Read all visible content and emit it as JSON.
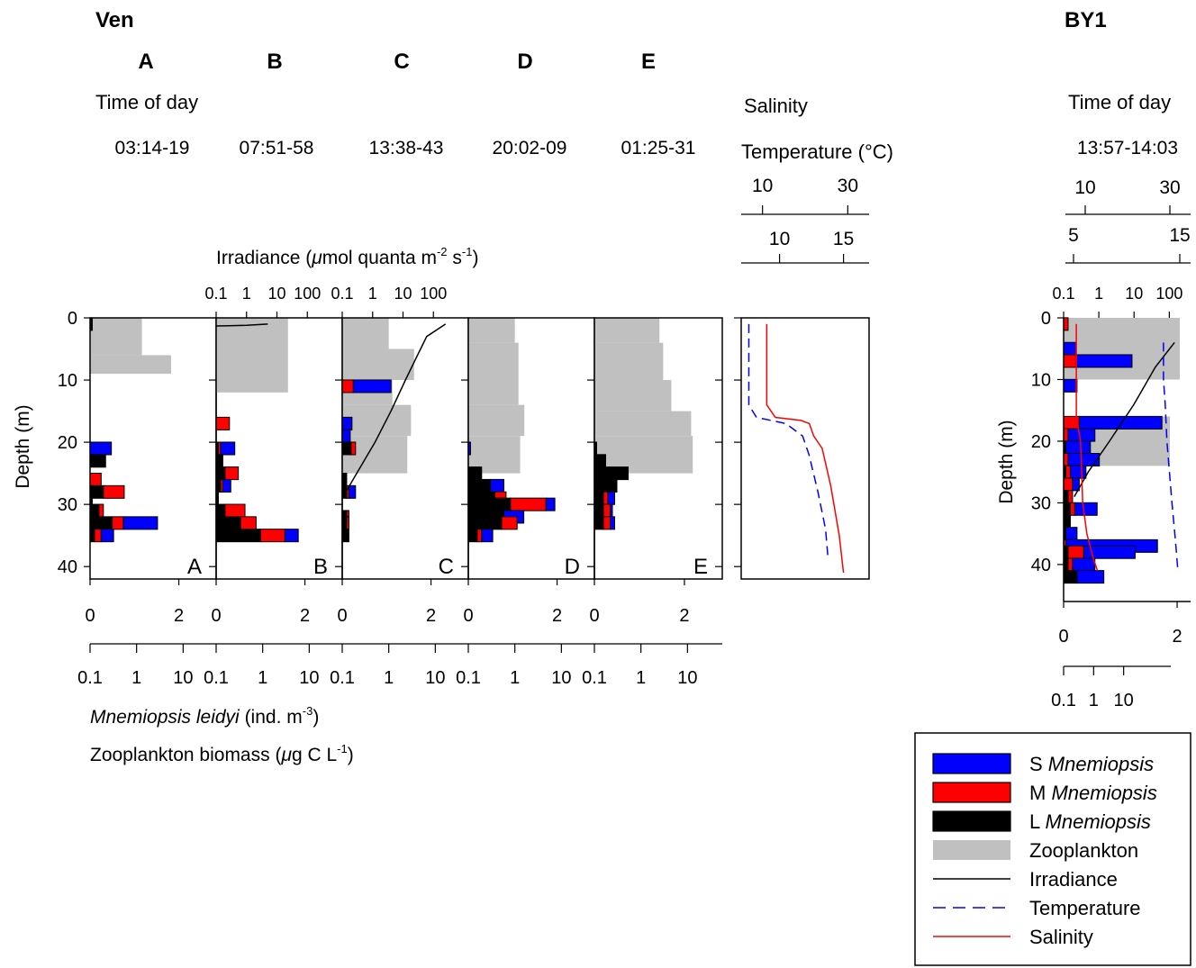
{
  "site_left": "Ven",
  "site_right": "BY1",
  "time_of_day_label": "Time of day",
  "salinity_label": "Salinity",
  "temperature_label": "Temperature (°C)",
  "irradiance_axis_label": {
    "pre": "Irradiance (",
    "mu": "μ",
    "mid": "mol quanta m",
    "sup1": "-2",
    "mid2": " s",
    "sup2": "-1",
    "post": ")"
  },
  "mnemiopsis_label": {
    "italic": "Mnemiopsis leidyi",
    "pre": " (ind. m",
    "sup": "-3",
    "post": ")"
  },
  "zooplankton_label": {
    "pre": "Zooplankton biomass (",
    "mu": "μ",
    "mid": "g C L",
    "sup": "-1",
    "post": ")"
  },
  "depth_label": "Depth (m)",
  "colors": {
    "S": "#0000ff",
    "M": "#ff0000",
    "L": "#000000",
    "zoo": "#c0c0c0",
    "irradiance": "#000000",
    "temperature": "#0000ff",
    "salinity": "#ff0000"
  },
  "legend": [
    {
      "prefix": "S ",
      "italic": "Mnemiopsis",
      "kind": "S"
    },
    {
      "prefix": "M ",
      "italic": "Mnemiopsis",
      "kind": "M"
    },
    {
      "prefix": "L ",
      "italic": "Mnemiopsis",
      "kind": "L"
    },
    {
      "prefix": "Zooplankton",
      "italic": "",
      "kind": "zoo"
    },
    {
      "prefix": "Irradiance",
      "italic": "",
      "kind": "irradiance"
    },
    {
      "prefix": "Temperature",
      "italic": "",
      "kind": "temperature"
    },
    {
      "prefix": "Salinity",
      "italic": "",
      "kind": "salinity"
    }
  ],
  "ticks": {
    "depth": [
      "0",
      "10",
      "20",
      "30",
      "40"
    ],
    "irradiance": [
      "0.1",
      "1",
      "10",
      "100"
    ],
    "mnemiopsis_lin": [
      "0",
      "2"
    ],
    "zoo_log": [
      "0.1",
      "1",
      "10"
    ],
    "salinity": [
      "10",
      "30"
    ],
    "temperature_ven": [
      "10",
      "15"
    ],
    "temperature_by1": [
      "5",
      "15"
    ]
  },
  "chart_data": [
    {
      "type": "bar",
      "site": "Ven",
      "panel": "A",
      "time": "03:14-19",
      "depth_range": [
        0,
        42
      ],
      "mnemiopsis_xlim": [
        0,
        2.5
      ],
      "zoo_log_xlim": [
        0.1,
        30
      ],
      "irradiance": [],
      "zooplankton": [
        {
          "d0": 0,
          "d1": 6,
          "v": 1.3
        },
        {
          "d0": 6,
          "d1": 9,
          "v": 5.5
        }
      ],
      "mnemiopsis": [
        {
          "d": 1,
          "L": 0.05,
          "M": 0,
          "S": 0
        },
        {
          "d": 21,
          "L": 0,
          "M": 0,
          "S": 0.48
        },
        {
          "d": 23,
          "L": 0.35,
          "M": 0,
          "S": 0
        },
        {
          "d": 26,
          "L": 0,
          "M": 0.25,
          "S": 0
        },
        {
          "d": 28,
          "L": 0.3,
          "M": 0.47,
          "S": 0
        },
        {
          "d": 30,
          "L": 0.05,
          "M": 0,
          "S": 0
        },
        {
          "d": 31,
          "L": 0.2,
          "M": 0.1,
          "S": 0
        },
        {
          "d": 33,
          "L": 0.5,
          "M": 0.25,
          "S": 0.77
        },
        {
          "d": 35,
          "L": 0.1,
          "M": 0.15,
          "S": 0.28
        }
      ]
    },
    {
      "type": "bar",
      "site": "Ven",
      "panel": "B",
      "time": "07:51-58",
      "depth_range": [
        0,
        42
      ],
      "mnemiopsis_xlim": [
        0,
        2.5
      ],
      "zoo_log_xlim": [
        0.1,
        30
      ],
      "irradiance": [
        {
          "depth": 1,
          "value": 5
        },
        {
          "depth": 1.2,
          "value": 1
        },
        {
          "depth": 1.3,
          "value": 0.1
        }
      ],
      "zooplankton": [
        {
          "d0": 0,
          "d1": 12,
          "v": 3.5
        }
      ],
      "mnemiopsis": [
        {
          "d": 17,
          "L": 0,
          "M": 0.3,
          "S": 0
        },
        {
          "d": 21,
          "L": 0.05,
          "M": 0.05,
          "S": 0.32
        },
        {
          "d": 23,
          "L": 0.15,
          "M": 0,
          "S": 0
        },
        {
          "d": 25,
          "L": 0.2,
          "M": 0.3,
          "S": 0
        },
        {
          "d": 27,
          "L": 0.1,
          "M": 0.05,
          "S": 0.18
        },
        {
          "d": 29,
          "L": 0.05,
          "M": 0,
          "S": 0
        },
        {
          "d": 31,
          "L": 0.2,
          "M": 0.45,
          "S": 0
        },
        {
          "d": 33,
          "L": 0.55,
          "M": 0.35,
          "S": 0
        },
        {
          "d": 35,
          "L": 1.0,
          "M": 0.55,
          "S": 0.3
        }
      ]
    },
    {
      "type": "bar",
      "site": "Ven",
      "panel": "C",
      "time": "13:38-43",
      "depth_range": [
        0,
        42
      ],
      "mnemiopsis_xlim": [
        0,
        2.5
      ],
      "zoo_log_xlim": [
        0.1,
        30
      ],
      "irradiance": [
        {
          "depth": 1,
          "value": 250
        },
        {
          "depth": 3,
          "value": 60
        },
        {
          "depth": 6,
          "value": 30
        },
        {
          "depth": 10,
          "value": 12
        },
        {
          "depth": 15,
          "value": 4
        },
        {
          "depth": 20,
          "value": 1.2
        },
        {
          "depth": 25,
          "value": 0.3
        },
        {
          "depth": 29,
          "value": 0.1
        }
      ],
      "zooplankton": [
        {
          "d0": 0,
          "d1": 5,
          "v": 1.0
        },
        {
          "d0": 5,
          "d1": 10,
          "v": 3.5
        },
        {
          "d0": 10,
          "d1": 14,
          "v": 1.2
        },
        {
          "d0": 14,
          "d1": 19,
          "v": 3.0
        },
        {
          "d0": 19,
          "d1": 25,
          "v": 2.5
        }
      ],
      "mnemiopsis": [
        {
          "d": 11,
          "L": 0,
          "M": 0.25,
          "S": 0.85
        },
        {
          "d": 17,
          "L": 0,
          "M": 0,
          "S": 0.22
        },
        {
          "d": 19,
          "L": 0,
          "M": 0,
          "S": 0.18
        },
        {
          "d": 21,
          "L": 0.2,
          "M": 0.1,
          "S": 0
        },
        {
          "d": 26,
          "L": 0.1,
          "M": 0,
          "S": 0
        },
        {
          "d": 28,
          "L": 0.1,
          "M": 0.05,
          "S": 0.15
        },
        {
          "d": 32,
          "L": 0.1,
          "M": 0.05,
          "S": 0
        },
        {
          "d": 33,
          "L": 0.1,
          "M": 0.05,
          "S": 0
        },
        {
          "d": 35,
          "L": 0.15,
          "M": 0,
          "S": 0
        }
      ]
    },
    {
      "type": "bar",
      "site": "Ven",
      "panel": "D",
      "time": "20:02-09",
      "depth_range": [
        0,
        42
      ],
      "mnemiopsis_xlim": [
        0,
        2.5
      ],
      "zoo_log_xlim": [
        0.1,
        30
      ],
      "irradiance": [],
      "zooplankton": [
        {
          "d0": 0,
          "d1": 4,
          "v": 1.0
        },
        {
          "d0": 4,
          "d1": 14,
          "v": 1.2
        },
        {
          "d0": 14,
          "d1": 19,
          "v": 1.6
        },
        {
          "d0": 19,
          "d1": 25,
          "v": 1.3
        }
      ],
      "mnemiopsis": [
        {
          "d": 21,
          "L": 0,
          "M": 0,
          "S": 0.05
        },
        {
          "d": 25,
          "L": 0.3,
          "M": 0,
          "S": 0
        },
        {
          "d": 27,
          "L": 0.5,
          "M": 0,
          "S": 0.3
        },
        {
          "d": 29,
          "L": 0.6,
          "M": 0.25,
          "S": 0
        },
        {
          "d": 30,
          "L": 0.95,
          "M": 0.8,
          "S": 0.2
        },
        {
          "d": 32,
          "L": 0.8,
          "M": 0,
          "S": 0.45
        },
        {
          "d": 33,
          "L": 0.75,
          "M": 0.35,
          "S": 0
        },
        {
          "d": 35,
          "L": 0.2,
          "M": 0.1,
          "S": 0.25
        }
      ]
    },
    {
      "type": "bar",
      "site": "Ven",
      "panel": "E",
      "time": "01:25-31",
      "depth_range": [
        0,
        42
      ],
      "mnemiopsis_xlim": [
        0,
        2.5
      ],
      "zoo_log_xlim": [
        0.1,
        30
      ],
      "irradiance": [],
      "zooplankton": [
        {
          "d0": 0,
          "d1": 4,
          "v": 2.5
        },
        {
          "d0": 4,
          "d1": 10,
          "v": 3.0
        },
        {
          "d0": 10,
          "d1": 15,
          "v": 4.5
        },
        {
          "d0": 15,
          "d1": 19,
          "v": 12
        },
        {
          "d0": 19,
          "d1": 25,
          "v": 13
        }
      ],
      "mnemiopsis": [
        {
          "d": 21,
          "L": 0.05,
          "M": 0,
          "S": 0
        },
        {
          "d": 23,
          "L": 0.25,
          "M": 0,
          "S": 0
        },
        {
          "d": 25,
          "L": 0.75,
          "M": 0,
          "S": 0
        },
        {
          "d": 27,
          "L": 0.5,
          "M": 0,
          "S": 0
        },
        {
          "d": 29,
          "L": 0.2,
          "M": 0.1,
          "S": 0.15
        },
        {
          "d": 31,
          "L": 0.2,
          "M": 0.15,
          "S": 0.05
        },
        {
          "d": 33,
          "L": 0.2,
          "M": 0.15,
          "S": 0.1
        }
      ]
    },
    {
      "type": "line",
      "site": "Ven",
      "panel": "Salinity/Temperature",
      "depth_range": [
        0,
        42
      ],
      "salinity_xlim": [
        5,
        35
      ],
      "temperature_xlim": [
        7,
        17
      ],
      "salinity": [
        {
          "depth": 1,
          "value": 11
        },
        {
          "depth": 14,
          "value": 11
        },
        {
          "depth": 16,
          "value": 13
        },
        {
          "depth": 16.5,
          "value": 19
        },
        {
          "depth": 17,
          "value": 21
        },
        {
          "depth": 19,
          "value": 22
        },
        {
          "depth": 21,
          "value": 24
        },
        {
          "depth": 27,
          "value": 26
        },
        {
          "depth": 35,
          "value": 28
        },
        {
          "depth": 41,
          "value": 29
        }
      ],
      "temperature": [
        {
          "depth": 1,
          "value": 7.6
        },
        {
          "depth": 14,
          "value": 7.6
        },
        {
          "depth": 16,
          "value": 8.2
        },
        {
          "depth": 17,
          "value": 10.5
        },
        {
          "depth": 19,
          "value": 11.8
        },
        {
          "depth": 22,
          "value": 12.3
        },
        {
          "depth": 28,
          "value": 13.0
        },
        {
          "depth": 34,
          "value": 13.6
        },
        {
          "depth": 39,
          "value": 13.8
        }
      ]
    },
    {
      "type": "bar",
      "site": "BY1",
      "panel": "BY1",
      "time": "13:57-14:03",
      "depth_range": [
        0,
        46
      ],
      "mnemiopsis_xlim": [
        0,
        2.5
      ],
      "zoo_log_xlim": [
        0.1,
        100
      ],
      "salinity_xlim": [
        5,
        35
      ],
      "temperature_xlim": [
        2,
        17
      ],
      "irradiance": [
        {
          "depth": 4,
          "value": 140
        },
        {
          "depth": 8,
          "value": 40
        },
        {
          "depth": 14,
          "value": 10
        },
        {
          "depth": 20,
          "value": 2
        },
        {
          "depth": 25,
          "value": 0.5
        },
        {
          "depth": 29,
          "value": 0.2
        }
      ],
      "zooplankton": [
        {
          "d0": 0,
          "d1": 10,
          "v": 70
        },
        {
          "d0": 16,
          "d1": 24,
          "v": 40
        }
      ],
      "mnemiopsis": [
        {
          "d": 1,
          "L": 0,
          "M": 0.1,
          "S": 0
        },
        {
          "d": 5,
          "L": 0,
          "M": 0,
          "S": 0.28
        },
        {
          "d": 7,
          "L": 0,
          "M": 0.28,
          "S": 1.25
        },
        {
          "d": 11,
          "L": 0,
          "M": 0,
          "S": 0.3
        },
        {
          "d": 17,
          "L": 0,
          "M": 0.35,
          "S": 1.85
        },
        {
          "d": 19,
          "L": 0,
          "M": 0.1,
          "S": 0.6
        },
        {
          "d": 21,
          "L": 0.05,
          "M": 0,
          "S": 0.55
        },
        {
          "d": 23,
          "L": 0,
          "M": 0.1,
          "S": 0.7
        },
        {
          "d": 25,
          "L": 0.05,
          "M": 0.1,
          "S": 0.35
        },
        {
          "d": 27,
          "L": 0,
          "M": 0.2,
          "S": 0.15
        },
        {
          "d": 29,
          "L": 0.1,
          "M": 0.1,
          "S": 0
        },
        {
          "d": 31,
          "L": 0.15,
          "M": 0.1,
          "S": 0.5
        },
        {
          "d": 33,
          "L": 0.15,
          "M": 0,
          "S": 0
        },
        {
          "d": 35,
          "L": 0.05,
          "M": 0,
          "S": 0.25
        },
        {
          "d": 37,
          "L": 0,
          "M": 0.05,
          "S": 2.05
        },
        {
          "d": 38,
          "L": 0.1,
          "M": 0.35,
          "S": 1.15
        },
        {
          "d": 40,
          "L": 0.1,
          "M": 0.1,
          "S": 0.5
        },
        {
          "d": 42,
          "L": 0.3,
          "M": 0,
          "S": 0.6
        }
      ],
      "salinity": [
        {
          "depth": 1,
          "value": 8
        },
        {
          "depth": 16,
          "value": 8
        },
        {
          "depth": 20,
          "value": 9
        },
        {
          "depth": 30,
          "value": 9.5
        },
        {
          "depth": 35,
          "value": 10.5
        },
        {
          "depth": 39,
          "value": 12
        },
        {
          "depth": 41,
          "value": 13
        }
      ],
      "temperature": [
        {
          "depth": 4,
          "value": 13.8
        },
        {
          "depth": 10,
          "value": 13.8
        },
        {
          "depth": 14,
          "value": 14.0
        },
        {
          "depth": 20,
          "value": 14.2
        },
        {
          "depth": 30,
          "value": 14.8
        },
        {
          "depth": 36,
          "value": 15.2
        },
        {
          "depth": 41,
          "value": 15.5
        }
      ]
    }
  ]
}
